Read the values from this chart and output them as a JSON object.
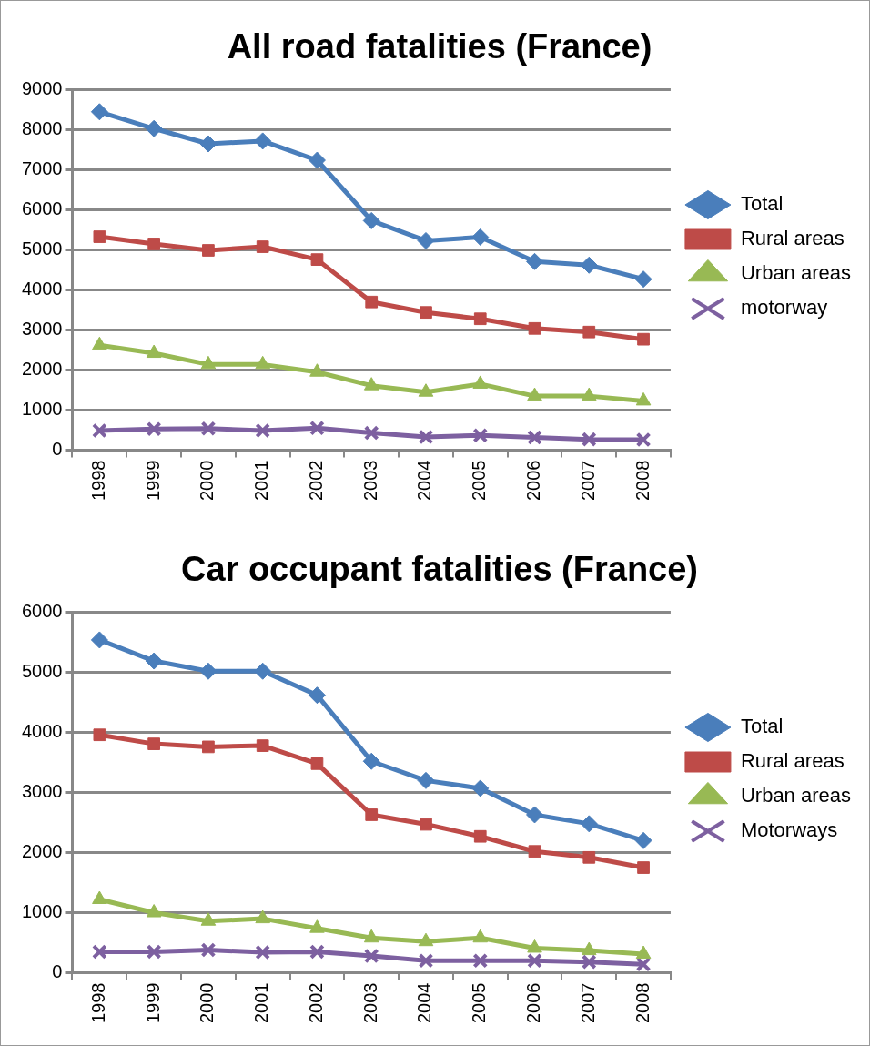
{
  "chart_data": [
    {
      "type": "line",
      "title": "All road fatalities (France)",
      "categories": [
        "1998",
        "1999",
        "2000",
        "2001",
        "2002",
        "2003",
        "2004",
        "2005",
        "2006",
        "2007",
        "2008"
      ],
      "ylim": [
        0,
        9000
      ],
      "yticks": [
        0,
        1000,
        2000,
        3000,
        4000,
        5000,
        6000,
        7000,
        8000,
        9000
      ],
      "grid": "y",
      "legend": "right",
      "series": [
        {
          "name": "Total",
          "color": "#4a7ebb",
          "marker": "diamond",
          "values": [
            8450,
            8030,
            7650,
            7720,
            7240,
            5730,
            5230,
            5320,
            4710,
            4620,
            4270
          ]
        },
        {
          "name": "Rural areas",
          "color": "#be4b48",
          "marker": "square",
          "values": [
            5330,
            5150,
            4990,
            5080,
            4760,
            3700,
            3440,
            3280,
            3040,
            2950,
            2770
          ]
        },
        {
          "name": "Urban areas",
          "color": "#98b954",
          "marker": "triangle",
          "values": [
            2620,
            2420,
            2140,
            2140,
            1950,
            1610,
            1450,
            1650,
            1350,
            1350,
            1230
          ]
        },
        {
          "name": "motorway",
          "color": "#7d60a0",
          "marker": "cross",
          "values": [
            490,
            530,
            540,
            490,
            550,
            430,
            330,
            370,
            320,
            270,
            260
          ]
        }
      ]
    },
    {
      "type": "line",
      "title": "Car occupant fatalities (France)",
      "categories": [
        "1998",
        "1999",
        "2000",
        "2001",
        "2002",
        "2003",
        "2004",
        "2005",
        "2006",
        "2007",
        "2008"
      ],
      "ylim": [
        0,
        6000
      ],
      "yticks": [
        0,
        1000,
        2000,
        3000,
        4000,
        5000,
        6000
      ],
      "grid": "y",
      "legend": "right",
      "series": [
        {
          "name": "Total",
          "color": "#4a7ebb",
          "marker": "diamond",
          "values": [
            5540,
            5190,
            5020,
            5020,
            4620,
            3520,
            3200,
            3070,
            2630,
            2480,
            2200
          ]
        },
        {
          "name": "Rural areas",
          "color": "#be4b48",
          "marker": "square",
          "values": [
            3960,
            3810,
            3760,
            3780,
            3480,
            2630,
            2470,
            2270,
            2020,
            1920,
            1750
          ]
        },
        {
          "name": "Urban areas",
          "color": "#98b954",
          "marker": "triangle",
          "values": [
            1220,
            1000,
            860,
            900,
            740,
            580,
            520,
            580,
            410,
            370,
            310
          ]
        },
        {
          "name": "Motorways",
          "color": "#7d60a0",
          "marker": "cross",
          "values": [
            350,
            350,
            380,
            340,
            350,
            280,
            200,
            200,
            200,
            180,
            140
          ]
        }
      ]
    }
  ]
}
